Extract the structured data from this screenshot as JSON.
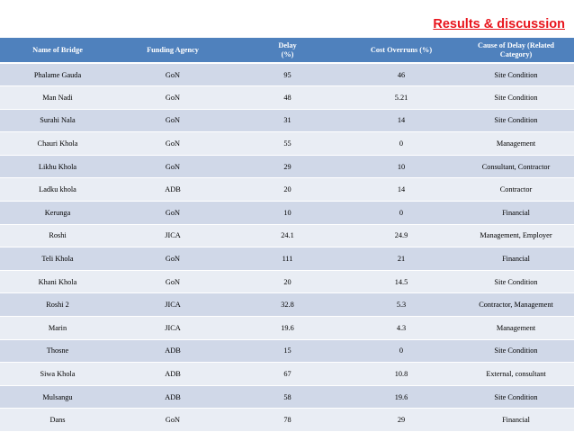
{
  "slide": {
    "title": "Results & discussion"
  },
  "table": {
    "headers": {
      "bridge": "Name of Bridge",
      "funding": "Funding Agency",
      "delay_line1": "Delay",
      "delay_line2": "(%)",
      "cost": "Cost Overruns (%)",
      "cause_line1": "Cause of Delay (Related",
      "cause_line2": "Category)"
    },
    "rows": [
      {
        "bridge": "Phalame Gauda",
        "funding": "GoN",
        "delay": "95",
        "cost": "46",
        "cause": "Site Condition"
      },
      {
        "bridge": "Man Nadi",
        "funding": "GoN",
        "delay": "48",
        "cost": "5.21",
        "cause": "Site Condition"
      },
      {
        "bridge": "Surahi Nala",
        "funding": "GoN",
        "delay": "31",
        "cost": "14",
        "cause": "Site Condition"
      },
      {
        "bridge": "Chauri Khola",
        "funding": "GoN",
        "delay": "55",
        "cost": "0",
        "cause": "Management"
      },
      {
        "bridge": "Likhu Khola",
        "funding": "GoN",
        "delay": "29",
        "cost": "10",
        "cause": "Consultant, Contractor"
      },
      {
        "bridge": "Ladku khola",
        "funding": "ADB",
        "delay": "20",
        "cost": "14",
        "cause": "Contractor"
      },
      {
        "bridge": "Kerunga",
        "funding": "GoN",
        "delay": "10",
        "cost": "0",
        "cause": "Financial"
      },
      {
        "bridge": "Roshi",
        "funding": "JICA",
        "delay": "24.1",
        "cost": "24.9",
        "cause": "Management, Employer"
      },
      {
        "bridge": "Teli Khola",
        "funding": "GoN",
        "delay": "111",
        "cost": "21",
        "cause": "Financial"
      },
      {
        "bridge": "Khani Khola",
        "funding": "GoN",
        "delay": "20",
        "cost": "14.5",
        "cause": "Site Condition"
      },
      {
        "bridge": "Roshi 2",
        "funding": "JICA",
        "delay": "32.8",
        "cost": "5.3",
        "cause": "Contractor, Management"
      },
      {
        "bridge": "Marin",
        "funding": "JICA",
        "delay": "19.6",
        "cost": "4.3",
        "cause": "Management"
      },
      {
        "bridge": "Thosne",
        "funding": "ADB",
        "delay": "15",
        "cost": "0",
        "cause": "Site Condition"
      },
      {
        "bridge": "Siwa Khola",
        "funding": "ADB",
        "delay": "67",
        "cost": "10.8",
        "cause": "External, consultant"
      },
      {
        "bridge": "Mulsangu",
        "funding": "ADB",
        "delay": "58",
        "cost": "19.6",
        "cause": "Site Condition"
      },
      {
        "bridge": "Dans",
        "funding": "GoN",
        "delay": "78",
        "cost": "29",
        "cause": "Financial"
      }
    ]
  }
}
